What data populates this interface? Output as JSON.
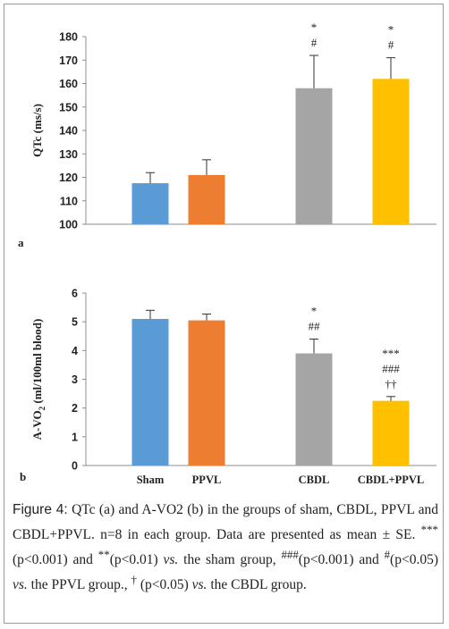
{
  "chart_data": [
    {
      "type": "bar",
      "panel_label": "a",
      "categories": [
        "Sham",
        "PPVL",
        "CBDL",
        "CBDL+PPVL"
      ],
      "values": [
        117.5,
        121,
        158,
        162
      ],
      "errors": [
        4.5,
        6.5,
        14,
        9
      ],
      "colors": [
        "#5b9bd5",
        "#ed7d31",
        "#a5a5a5",
        "#ffc000"
      ],
      "annotations": [
        [],
        [],
        [
          "*",
          "#"
        ],
        [
          "*",
          "#"
        ]
      ],
      "ylabel": "QTc (ms/s)",
      "ylim": [
        100,
        180
      ],
      "yticks": [
        "100",
        "110",
        "120",
        "130",
        "140",
        "150",
        "160",
        "170",
        "180"
      ],
      "show_category_labels": false
    },
    {
      "type": "bar",
      "panel_label": "b",
      "categories": [
        "Sham",
        "PPVL",
        "CBDL",
        "CBDL+PPVL"
      ],
      "values": [
        5.1,
        5.05,
        3.9,
        2.25
      ],
      "errors": [
        0.3,
        0.22,
        0.5,
        0.15
      ],
      "colors": [
        "#5b9bd5",
        "#ed7d31",
        "#a5a5a5",
        "#ffc000"
      ],
      "annotations": [
        [],
        [],
        [
          "*",
          "##"
        ],
        [
          "***",
          "###",
          "††"
        ]
      ],
      "ylabel_main": "A-VO",
      "ylabel_sub": "2",
      "ylabel_rest": " (ml/100ml blood)",
      "ylim": [
        0,
        6
      ],
      "yticks": [
        "0",
        "1",
        "2",
        "3",
        "4",
        "5",
        "6"
      ],
      "show_category_labels": true
    }
  ],
  "caption": {
    "figure_label": "Figure 4:",
    "line1": " QTc (a) and A-VO2 (b) in the groups of sham, CBDL, PPVL and CBDL+PPVL. n=8 in each group. Data are presented as mean ± SE. ",
    "sup1": "***",
    "t1": "(p<0.001) and ",
    "sup2": "**",
    "t2": "(p<0.01) ",
    "vs1": "vs.",
    "t3": " the sham group, ",
    "sup3": "###",
    "t4": "(p<0.001) and ",
    "sup4": "#",
    "t5": "(p<0.05) ",
    "vs2": "vs.",
    "t6": " the PPVL group., ",
    "sup5": "†",
    "t7": " (p<0.05) ",
    "vs3": "vs.",
    "t8": " the CBDL group."
  }
}
